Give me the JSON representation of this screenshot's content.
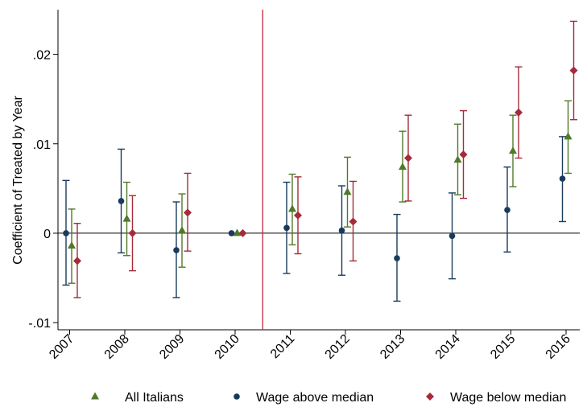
{
  "chart_data": {
    "type": "scatter",
    "title": "",
    "xlabel": "",
    "ylabel": "Coefficient of Treated by Year",
    "categories": [
      "2007",
      "2008",
      "2009",
      "2010",
      "2011",
      "2012",
      "2013",
      "2014",
      "2015",
      "2016"
    ],
    "ylim": [
      -0.0108,
      0.025
    ],
    "yticks": [
      -0.01,
      0,
      0.01,
      0.02
    ],
    "ytick_labels": [
      "-.01",
      "0",
      ".01",
      ".02"
    ],
    "zero_line": 0,
    "reference_line_between": [
      "2010",
      "2011"
    ],
    "grid": false,
    "legend_position": "bottom",
    "series": [
      {
        "name": "All Italians",
        "marker": "triangle",
        "color": "#4f7a28",
        "values": [
          -0.0014,
          0.0016,
          0.0003,
          0.0,
          0.0027,
          0.0046,
          0.0074,
          0.0082,
          0.0092,
          0.0108
        ],
        "ci_low": [
          -0.0056,
          -0.0025,
          -0.0038,
          0.0,
          -0.0013,
          0.0007,
          0.0035,
          0.0043,
          0.0052,
          0.0067
        ],
        "ci_high": [
          0.0027,
          0.0057,
          0.0044,
          0.0,
          0.0066,
          0.0085,
          0.0114,
          0.0122,
          0.0132,
          0.0148
        ]
      },
      {
        "name": "Wage above median",
        "marker": "circle",
        "color": "#1a3a5c",
        "values": [
          0.0,
          0.0036,
          -0.0019,
          0.0,
          0.0006,
          0.0003,
          -0.0028,
          -0.0003,
          0.0026,
          0.0061
        ],
        "ci_low": [
          -0.0058,
          -0.0022,
          -0.0072,
          0.0,
          -0.0045,
          -0.0047,
          -0.0076,
          -0.0051,
          -0.0021,
          0.0013
        ],
        "ci_high": [
          0.0059,
          0.0094,
          0.0035,
          0.0,
          0.0057,
          0.0053,
          0.0021,
          0.0045,
          0.0074,
          0.0108
        ]
      },
      {
        "name": "Wage below median",
        "marker": "diamond",
        "color": "#a52a3a",
        "values": [
          -0.0031,
          0.0,
          0.0023,
          0.0,
          0.002,
          0.0013,
          0.0084,
          0.0088,
          0.0135,
          0.0182
        ],
        "ci_low": [
          -0.0072,
          -0.0042,
          -0.002,
          0.0,
          -0.0023,
          -0.0031,
          0.0036,
          0.0039,
          0.0084,
          0.0127
        ],
        "ci_high": [
          0.0011,
          0.0042,
          0.0067,
          0.0,
          0.0063,
          0.0058,
          0.0132,
          0.0137,
          0.0186,
          0.0237
        ]
      }
    ]
  }
}
